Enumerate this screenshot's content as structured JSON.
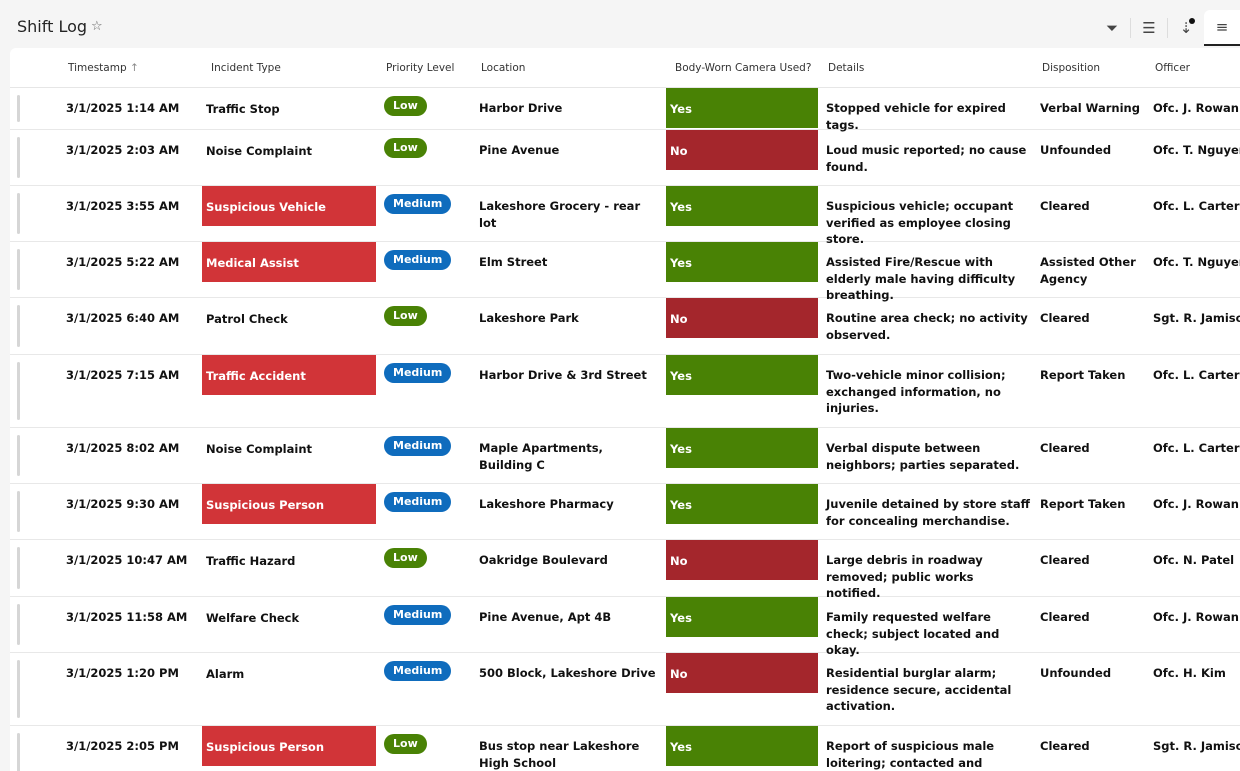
{
  "header": {
    "title": "Shift Log",
    "icons": [
      "star-icon",
      "filter-icon",
      "list-icon",
      "sort-icon",
      "menu-icon"
    ]
  },
  "colors": {
    "low": "#498205",
    "medium": "#0f6cbd",
    "incident_red": "#d13438",
    "yes": "#498205",
    "no": "#a4262c"
  },
  "columns": {
    "timestamp": "Timestamp",
    "sort": "↑",
    "incident": "Incident Type",
    "priority": "Priority Level",
    "location": "Location",
    "camera": "Body-Worn Camera Used?",
    "details": "Details",
    "disposition": "Disposition",
    "officer": "Officer"
  },
  "rows": [
    {
      "ts": "3/1/2025 1:14 AM",
      "inc": "Traffic Stop",
      "hl": false,
      "pri": "Low",
      "loc": "Harbor Drive",
      "cam": "Yes",
      "det": "Stopped vehicle for expired tags.",
      "disp": "Verbal Warning",
      "off": "Ofc. J. Rowan"
    },
    {
      "ts": "3/1/2025 2:03 AM",
      "inc": "Noise Complaint",
      "hl": false,
      "pri": "Low",
      "loc": "Pine Avenue",
      "cam": "No",
      "det": "Loud music reported; no cause found.",
      "disp": "Unfounded",
      "off": "Ofc. T. Nguyen"
    },
    {
      "ts": "3/1/2025 3:55 AM",
      "inc": "Suspicious Vehicle",
      "hl": true,
      "pri": "Medium",
      "loc": "Lakeshore Grocery - rear lot",
      "cam": "Yes",
      "det": "Suspicious vehicle; occupant verified as employee closing store.",
      "disp": "Cleared",
      "off": "Ofc. L. Carter"
    },
    {
      "ts": "3/1/2025 5:22 AM",
      "inc": "Medical Assist",
      "hl": true,
      "pri": "Medium",
      "loc": "Elm Street",
      "cam": "Yes",
      "det": "Assisted Fire/Rescue with elderly male having difficulty breathing.",
      "disp": "Assisted Other Agency",
      "off": "Ofc. T. Nguyen"
    },
    {
      "ts": "3/1/2025 6:40 AM",
      "inc": "Patrol Check",
      "hl": false,
      "pri": "Low",
      "loc": "Lakeshore Park",
      "cam": "No",
      "det": "Routine area check; no activity observed.",
      "disp": "Cleared",
      "off": "Sgt. R. Jamison"
    },
    {
      "ts": "3/1/2025 7:15 AM",
      "inc": "Traffic Accident",
      "hl": true,
      "pri": "Medium",
      "loc": "Harbor Drive & 3rd Street",
      "cam": "Yes",
      "det": "Two-vehicle minor collision; exchanged information, no injuries.",
      "disp": "Report Taken",
      "off": "Ofc. L. Carter"
    },
    {
      "ts": "3/1/2025 8:02 AM",
      "inc": "Noise Complaint",
      "hl": false,
      "pri": "Medium",
      "loc": "Maple Apartments, Building C",
      "cam": "Yes",
      "det": "Verbal dispute between neighbors; parties separated.",
      "disp": "Cleared",
      "off": "Ofc. L. Carter"
    },
    {
      "ts": "3/1/2025 9:30 AM",
      "inc": "Suspicious Person",
      "hl": true,
      "pri": "Medium",
      "loc": "Lakeshore Pharmacy",
      "cam": "Yes",
      "det": "Juvenile detained by store staff for concealing merchandise.",
      "disp": "Report Taken",
      "off": "Ofc. J. Rowan"
    },
    {
      "ts": "3/1/2025 10:47 AM",
      "inc": "Traffic Hazard",
      "hl": false,
      "pri": "Low",
      "loc": "Oakridge Boulevard",
      "cam": "No",
      "det": "Large debris in roadway removed; public works notified.",
      "disp": "Cleared",
      "off": "Ofc. N. Patel"
    },
    {
      "ts": "3/1/2025 11:58 AM",
      "inc": "Welfare Check",
      "hl": false,
      "pri": "Medium",
      "loc": "Pine Avenue, Apt 4B",
      "cam": "Yes",
      "det": "Family requested welfare check; subject located and okay.",
      "disp": "Cleared",
      "off": "Ofc. J. Rowan"
    },
    {
      "ts": "3/1/2025 1:20 PM",
      "inc": "Alarm",
      "hl": false,
      "pri": "Medium",
      "loc": "500 Block, Lakeshore Drive",
      "cam": "No",
      "det": "Residential burglar alarm; residence secure, accidental activation.",
      "disp": "Unfounded",
      "off": "Ofc. H. Kim"
    },
    {
      "ts": "3/1/2025 2:05 PM",
      "inc": "Suspicious Person",
      "hl": true,
      "pri": "Low",
      "loc": "Bus stop near Lakeshore High School",
      "cam": "Yes",
      "det": "Report of suspicious male loitering; contacted and released, no further action.",
      "disp": "Cleared",
      "off": "Sgt. R. Jamison"
    }
  ]
}
